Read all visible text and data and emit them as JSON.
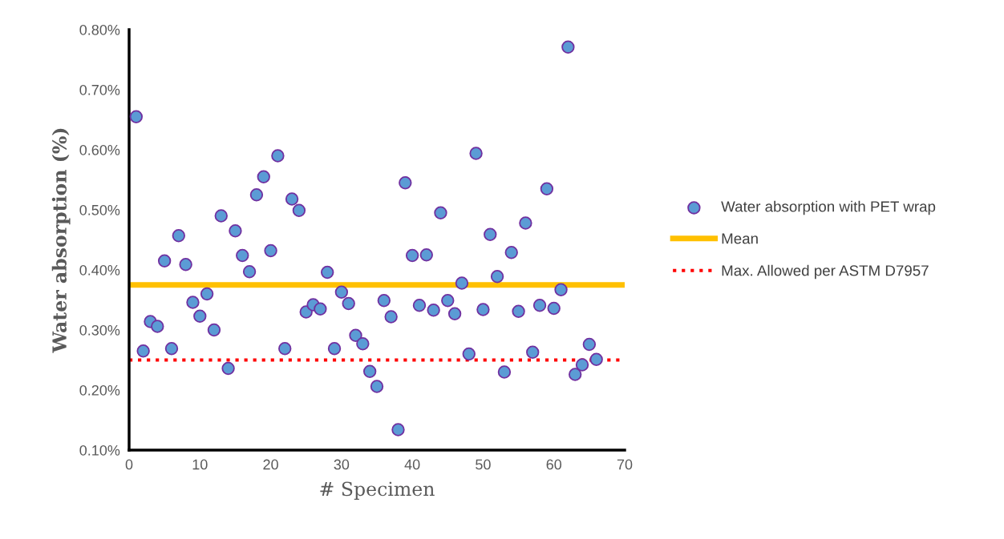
{
  "chart_data": {
    "type": "scatter",
    "xlabel": "# Specimen",
    "ylabel": "Water absorption (%)",
    "x": [
      1,
      2,
      3,
      4,
      5,
      6,
      7,
      8,
      9,
      10,
      11,
      12,
      13,
      14,
      15,
      16,
      17,
      18,
      19,
      20,
      21,
      22,
      23,
      24,
      25,
      26,
      27,
      28,
      29,
      30,
      31,
      32,
      33,
      34,
      35,
      36,
      37,
      38,
      39,
      40,
      41,
      42,
      43,
      44,
      45,
      46,
      47,
      48,
      49,
      50,
      51,
      52,
      53,
      54,
      55,
      56,
      57,
      58,
      59,
      60,
      61,
      62,
      63,
      64,
      65,
      66
    ],
    "series": [
      {
        "name": "Water absorption with PET wrap",
        "color": "#5b9bd5",
        "values": [
          0.655,
          0.265,
          0.314,
          0.306,
          0.415,
          0.269,
          0.457,
          0.409,
          0.346,
          0.323,
          0.36,
          0.3,
          0.49,
          0.236,
          0.465,
          0.424,
          0.397,
          0.525,
          0.555,
          0.432,
          0.59,
          0.269,
          0.518,
          0.499,
          0.33,
          0.342,
          0.335,
          0.396,
          0.269,
          0.363,
          0.344,
          0.291,
          0.277,
          0.231,
          0.206,
          0.349,
          0.322,
          0.134,
          0.545,
          0.424,
          0.341,
          0.425,
          0.333,
          0.495,
          0.349,
          0.327,
          0.378,
          0.26,
          0.594,
          0.334,
          0.459,
          0.389,
          0.23,
          0.429,
          0.331,
          0.478,
          0.263,
          0.341,
          0.535,
          0.336,
          0.367,
          0.771,
          0.226,
          0.242,
          0.276,
          0.251
        ]
      }
    ],
    "marker": "circle",
    "ref_lines": [
      {
        "axis": "y",
        "value": 0.375,
        "label": "Mean",
        "color": "#ffc000",
        "line_style": "solid"
      },
      {
        "axis": "y",
        "value": 0.25,
        "label": "Max. Allowed per ASTM D7957",
        "color": "#ff0000",
        "line_style": "dotted"
      }
    ],
    "xlim": [
      0,
      70
    ],
    "xticks": [
      0,
      10,
      20,
      30,
      40,
      50,
      60,
      70
    ],
    "ylim": [
      0.1,
      0.8
    ],
    "yticks": [
      {
        "value": 0.1,
        "label": "0.10%"
      },
      {
        "value": 0.2,
        "label": "0.20%"
      },
      {
        "value": 0.3,
        "label": "0.30%"
      },
      {
        "value": 0.4,
        "label": "0.40%"
      },
      {
        "value": 0.5,
        "label": "0.50%"
      },
      {
        "value": 0.6,
        "label": "0.60%"
      },
      {
        "value": 0.7,
        "label": "0.70%"
      },
      {
        "value": 0.8,
        "label": "0.80%"
      }
    ],
    "grid": false,
    "legend": "right"
  }
}
